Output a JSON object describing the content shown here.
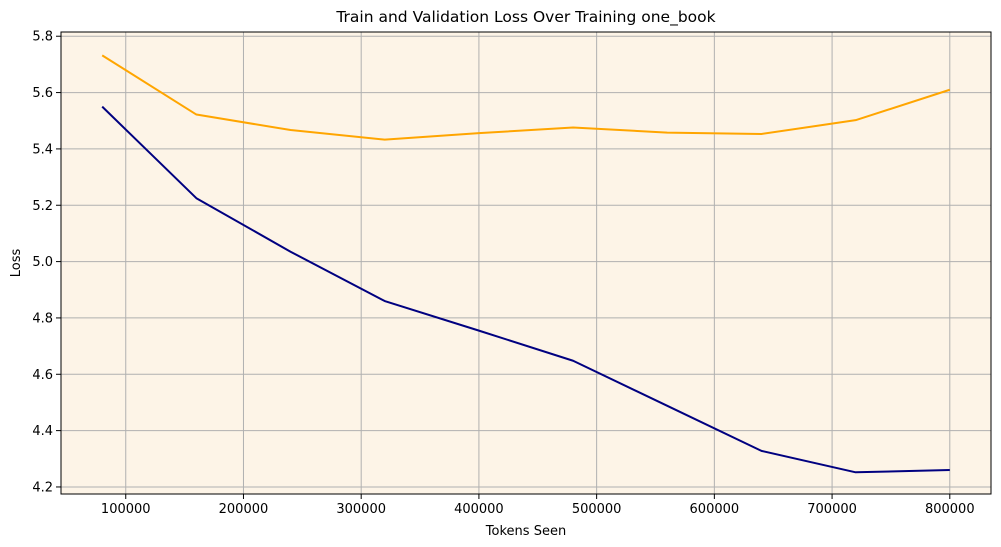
{
  "chart_data": {
    "type": "line",
    "title": "Train and Validation Loss Over Training one_book",
    "xlabel": "Tokens Seen",
    "ylabel": "Loss",
    "xlim": [
      45000,
      835000
    ],
    "ylim": [
      4.175,
      5.815
    ],
    "xticks": [
      100000,
      200000,
      300000,
      400000,
      500000,
      600000,
      700000,
      800000
    ],
    "yticks": [
      4.2,
      4.4,
      4.6,
      4.8,
      5.0,
      5.2,
      5.4,
      5.6,
      5.8
    ],
    "xtick_labels": [
      "100000",
      "200000",
      "300000",
      "400000",
      "500000",
      "600000",
      "700000",
      "800000"
    ],
    "ytick_labels": [
      "4.2",
      "4.4",
      "4.6",
      "4.8",
      "5.0",
      "5.2",
      "5.4",
      "5.6",
      "5.8"
    ],
    "grid": true,
    "background_color": "#fdf4e7",
    "grid_color": "#b0b0b0",
    "series": [
      {
        "color": "#000080",
        "x": [
          80000,
          160000,
          240000,
          320000,
          400000,
          480000,
          560000,
          640000,
          720000,
          800000
        ],
        "values": [
          5.55,
          5.225,
          5.035,
          4.86,
          4.755,
          4.648,
          4.488,
          4.328,
          4.252,
          4.26
        ]
      },
      {
        "color": "#ffa500",
        "x": [
          80000,
          160000,
          240000,
          320000,
          400000,
          480000,
          560000,
          640000,
          720000,
          800000
        ],
        "values": [
          5.732,
          5.522,
          5.467,
          5.433,
          5.456,
          5.476,
          5.458,
          5.453,
          5.502,
          5.61
        ]
      }
    ]
  }
}
